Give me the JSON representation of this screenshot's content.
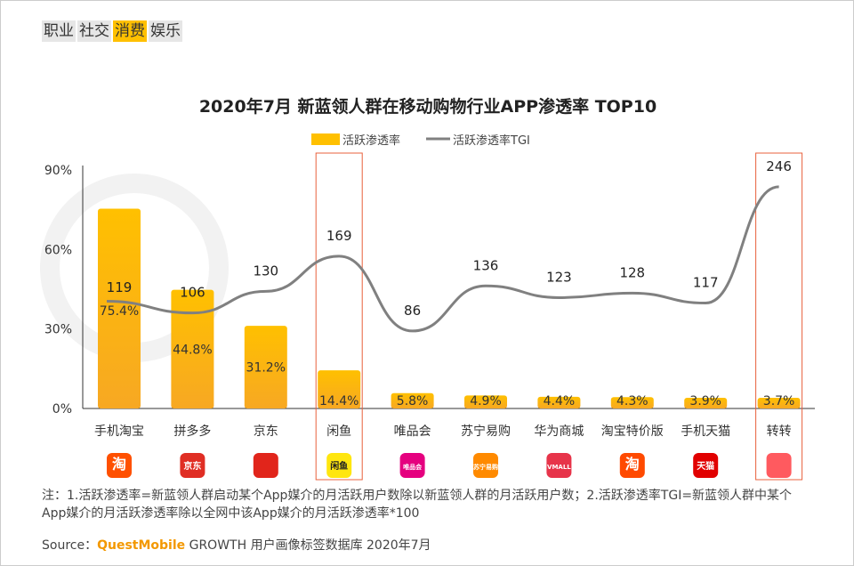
{
  "tabs": [
    {
      "label": "职业",
      "active": false
    },
    {
      "label": "社交",
      "active": false
    },
    {
      "label": "消费",
      "active": true
    },
    {
      "label": "娱乐",
      "active": false
    }
  ],
  "chart_data": {
    "type": "bar+line",
    "title": "2020年7月 新蓝领人群在移动购物行业APP渗透率 TOP10",
    "legend": [
      "活跃渗透率",
      "活跃渗透率TGI"
    ],
    "legend_placement": "top-center",
    "categories": [
      "手机淘宝",
      "拼多多",
      "京东",
      "闲鱼",
      "唯品会",
      "苏宁易购",
      "华为商城",
      "淘宝特价版",
      "手机天猫",
      "转转"
    ],
    "series": [
      {
        "name": "活跃渗透率",
        "type": "bar",
        "unit": "%",
        "values": [
          75.4,
          44.8,
          31.2,
          14.4,
          5.8,
          4.9,
          4.4,
          4.3,
          3.9,
          3.7
        ]
      },
      {
        "name": "活跃渗透率TGI",
        "type": "line",
        "values": [
          119,
          106,
          130,
          169,
          86,
          136,
          123,
          128,
          117,
          246
        ]
      }
    ],
    "y_ticks": [
      "0%",
      "30%",
      "60%",
      "90%"
    ],
    "ylim": [
      0,
      90
    ],
    "highlighted": [
      "闲鱼",
      "转转"
    ]
  },
  "icons": [
    "taobao-app-icon",
    "pinduoduo-app-icon",
    "jd-app-icon",
    "xianyu-app-icon",
    "vip-app-icon",
    "suning-app-icon",
    "huawei-vmall-app-icon",
    "taobao-lite-app-icon",
    "tmall-app-icon",
    "zhuanzhuan-app-icon"
  ],
  "icon_texts": [
    "淘",
    "京东",
    "",
    "闲鱼",
    "唯品会",
    "苏宁易购",
    "VMALL",
    "淘",
    "天猫",
    ""
  ],
  "watermark": "QUEST MOBILE",
  "note": "注：1.活跃渗透率=新蓝领人群启动某个App媒介的月活跃用户数除以新蓝领人群的月活跃用户数；2.活跃渗透率TGI=新蓝领人群中某个App媒介的月活跃渗透率除以全网中该App媒介的月活跃渗透率*100",
  "source": {
    "label": "Source：",
    "brand": "QuestMobile",
    "text": " GROWTH 用户画像标签数据库 2020年7月"
  },
  "colors": {
    "bar": "#ffc000",
    "bar_bottom": "#f7a823",
    "line": "#808080",
    "highlight": "#e8603c",
    "active_tab": "#ffc000"
  }
}
